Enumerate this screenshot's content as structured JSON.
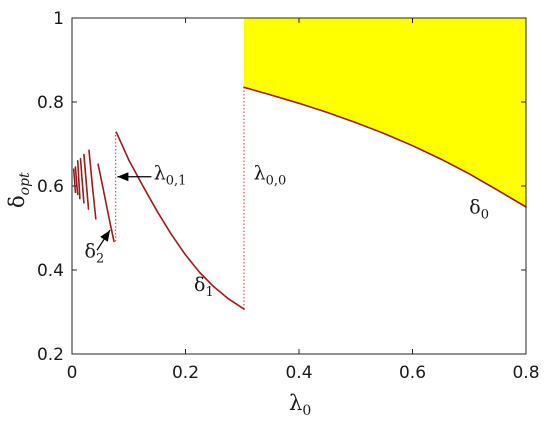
{
  "chart_data": {
    "type": "line",
    "xlim": [
      0,
      0.8
    ],
    "ylim": [
      0.2,
      1
    ],
    "xticks": [
      0,
      0.2,
      0.4,
      0.6,
      0.8
    ],
    "yticks": [
      0.2,
      0.4,
      0.6,
      0.8,
      1
    ],
    "xtick_labels": [
      "0",
      "0.2",
      "0.4",
      "0.6",
      "0.8"
    ],
    "ytick_labels": [
      "0.2",
      "0.4",
      "0.6",
      "0.8",
      "1"
    ],
    "xlabel": {
      "base": "λ",
      "sub": "0"
    },
    "ylabel": {
      "base": "δ",
      "sub": "opt"
    },
    "grid": false,
    "line_color": "#9b1c1c",
    "fill_color": "#ffff00",
    "guide_color": "#c0392b",
    "series": [
      {
        "name": "δ0",
        "x": [
          0.303,
          0.35,
          0.4,
          0.45,
          0.5,
          0.55,
          0.6,
          0.65,
          0.7,
          0.75,
          0.8
        ],
        "y": [
          0.835,
          0.817,
          0.797,
          0.775,
          0.751,
          0.725,
          0.696,
          0.664,
          0.629,
          0.59,
          0.55
        ]
      },
      {
        "x": [
          0.078,
          0.1,
          0.125,
          0.15,
          0.175,
          0.2,
          0.225,
          0.25,
          0.275,
          0.303
        ],
        "y": [
          0.728,
          0.662,
          0.6,
          0.54,
          0.485,
          0.436,
          0.394,
          0.36,
          0.332,
          0.307
        ]
      },
      {
        "x": [
          0.046,
          0.055,
          0.065,
          0.074
        ],
        "y": [
          0.652,
          0.593,
          0.525,
          0.468
        ]
      },
      {
        "x": [
          0.03,
          0.036,
          0.042
        ],
        "y": [
          0.685,
          0.6,
          0.522
        ]
      },
      {
        "x": [
          0.021,
          0.025,
          0.029
        ],
        "y": [
          0.675,
          0.61,
          0.545
        ]
      },
      {
        "x": [
          0.015,
          0.018,
          0.021
        ],
        "y": [
          0.665,
          0.612,
          0.56
        ]
      },
      {
        "x": [
          0.01,
          0.012,
          0.014
        ],
        "y": [
          0.66,
          0.615,
          0.57
        ]
      },
      {
        "x": [
          0.006,
          0.008,
          0.01
        ],
        "y": [
          0.645,
          0.612,
          0.58
        ]
      },
      {
        "x": [
          0.003,
          0.0045,
          0.006
        ],
        "y": [
          0.64,
          0.612,
          0.585
        ]
      }
    ],
    "vlines": [
      {
        "x": 0.303,
        "y": [
          0.307,
          0.835
        ]
      },
      {
        "x": 0.077,
        "y": [
          0.468,
          0.728
        ]
      }
    ],
    "labels": {
      "delta0": {
        "base": "δ",
        "sub": "0",
        "x": 0.7,
        "y": 0.535
      },
      "delta1": {
        "base": "δ",
        "sub": "1",
        "x": 0.215,
        "y": 0.35
      },
      "delta2": {
        "base": "δ",
        "sub": "2",
        "x": 0.022,
        "y": 0.43
      },
      "lambda00": {
        "base": "λ",
        "sub": "0,0",
        "x": 0.32,
        "y": 0.615
      },
      "lambda01": {
        "base": "λ",
        "sub": "0,1",
        "x": 0.144,
        "y": 0.615
      }
    },
    "arrows": [
      {
        "from": [
          0.14,
          0.622
        ],
        "to": [
          0.08,
          0.622
        ]
      },
      {
        "from": [
          0.044,
          0.447
        ],
        "to": [
          0.067,
          0.495
        ]
      }
    ]
  }
}
